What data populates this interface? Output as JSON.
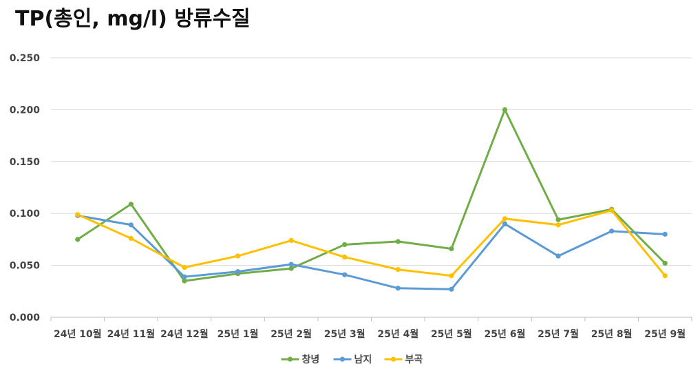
{
  "chart_data": {
    "type": "line",
    "title": "TP(총인, mg/l) 방류수질",
    "xlabel": "",
    "ylabel": "",
    "categories": [
      "24년 10월",
      "24년 11월",
      "24년 12월",
      "25년 1월",
      "25년 2월",
      "25년 3월",
      "25년 4월",
      "25년 5월",
      "25년 6월",
      "25년 7월",
      "25년 8월",
      "25년 9월"
    ],
    "series": [
      {
        "name": "창녕",
        "color": "#70AD47",
        "values": [
          0.075,
          0.109,
          0.035,
          0.042,
          0.047,
          0.07,
          0.073,
          0.066,
          0.2,
          0.094,
          0.104,
          0.052
        ]
      },
      {
        "name": "남지",
        "color": "#5B9BD5",
        "values": [
          0.098,
          0.089,
          0.039,
          0.044,
          0.051,
          0.041,
          0.028,
          0.027,
          0.09,
          0.059,
          0.083,
          0.08
        ]
      },
      {
        "name": "부곡",
        "color": "#FFC000",
        "values": [
          0.099,
          0.076,
          0.048,
          0.059,
          0.074,
          0.058,
          0.046,
          0.04,
          0.095,
          0.089,
          0.103,
          0.04
        ]
      }
    ],
    "ylim": [
      0,
      0.25
    ],
    "yticks": [
      "0.000",
      "0.050",
      "0.100",
      "0.150",
      "0.200",
      "0.250"
    ],
    "grid": true,
    "legend": "bottom"
  }
}
